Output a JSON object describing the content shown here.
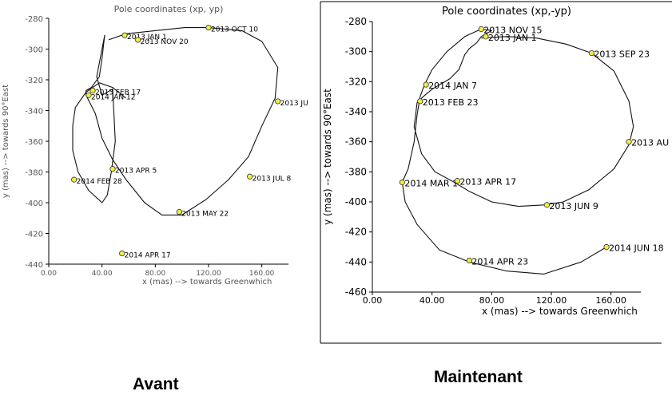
{
  "captions": {
    "left": "Avant",
    "right": "Maintenant"
  },
  "chart_data": [
    {
      "type": "line",
      "title": "Pole coordinates (xp, yp)",
      "xlabel": "x (mas) --> towards Greenwhich",
      "ylabel": "y (mas) --> towards 90°East",
      "xlim": [
        0,
        180
      ],
      "ylim": [
        -440,
        -280
      ],
      "xticks": [
        "0.00",
        "40.00",
        "80.00",
        "120.00",
        "160.00"
      ],
      "yticks": [
        "-280",
        "-300",
        "-320",
        "-340",
        "-360",
        "-380",
        "-400",
        "-420",
        "-440"
      ],
      "grid": false,
      "series": [
        {
          "x": [
            45,
            58,
            80,
            102,
            120,
            145,
            160,
            172,
            170,
            160,
            150,
            135,
            118,
            100,
            85,
            72,
            58,
            48,
            40,
            35,
            28,
            28,
            32,
            38,
            40,
            42,
            36,
            40,
            48,
            50,
            47,
            44,
            40,
            30,
            22,
            18,
            18,
            20,
            28,
            38,
            48,
            58
          ],
          "y": [
            -294,
            -290,
            -288,
            -286,
            -286,
            -288,
            -295,
            -312,
            -332,
            -350,
            -370,
            -385,
            -398,
            -408,
            -408,
            -400,
            -385,
            -372,
            -358,
            -342,
            -330,
            -327,
            -325,
            -318,
            -306,
            -291,
            -318,
            -330,
            -326,
            -360,
            -380,
            -395,
            -400,
            -392,
            -380,
            -366,
            -350,
            -338,
            -328,
            -322,
            -325,
            -332
          ]
        }
      ],
      "markers": [
        {
          "label": "2013 OCT 10",
          "x": 120,
          "y": -286
        },
        {
          "label": "2013 JAN 1",
          "x": 57,
          "y": -291
        },
        {
          "label": "2013 NOV 20",
          "x": 67,
          "y": -294
        },
        {
          "label": "2013 JU",
          "x": 172,
          "y": -334
        },
        {
          "label": "2013 FEB 17",
          "x": 33,
          "y": -327
        },
        {
          "label": "2014 JAN 12",
          "x": 30,
          "y": -330
        },
        {
          "label": "2013 JUL 8",
          "x": 151,
          "y": -383
        },
        {
          "label": "2013 APR 5",
          "x": 48,
          "y": -378
        },
        {
          "label": "2014 FEB 28",
          "x": 19,
          "y": -385
        },
        {
          "label": "2013 MAY 22",
          "x": 98,
          "y": -406
        },
        {
          "label": "2014 APR 17",
          "x": 55,
          "y": -433
        }
      ]
    },
    {
      "type": "line",
      "title": "Pole coordinates (xp,-yp)",
      "xlabel": "x (mas) --> towards Greenwhich",
      "ylabel": "y (mas) --> towards 90°East",
      "xlim": [
        0,
        180
      ],
      "ylim": [
        -460,
        -280
      ],
      "xticks": [
        "0.00",
        "40.00",
        "80.00",
        "120.00",
        "160.00"
      ],
      "yticks": [
        "-280",
        "-300",
        "-320",
        "-340",
        "-360",
        "-380",
        "-400",
        "-420",
        "-440",
        "-460"
      ],
      "grid": false,
      "series": [
        {
          "x": [
            73,
            90,
            110,
            130,
            147,
            162,
            172,
            175,
            172,
            162,
            145,
            128,
            115,
            98,
            80,
            65,
            55,
            42,
            33,
            28,
            30,
            34,
            40,
            52,
            58,
            62,
            65,
            70,
            73,
            80,
            73,
            62,
            50,
            40,
            35,
            32,
            30,
            28,
            24,
            20,
            22,
            30,
            45,
            65,
            90,
            115,
            140,
            157
          ],
          "y": [
            -291,
            -290,
            -291,
            -295,
            -301,
            -313,
            -333,
            -350,
            -362,
            -378,
            -392,
            -400,
            -402,
            -403,
            -400,
            -393,
            -387,
            -380,
            -368,
            -350,
            -334,
            -330,
            -325,
            -318,
            -312,
            -302,
            -298,
            -294,
            -290,
            -286,
            -285,
            -290,
            -300,
            -312,
            -322,
            -330,
            -342,
            -360,
            -378,
            -387,
            -400,
            -415,
            -432,
            -440,
            -446,
            -448,
            -440,
            -430
          ]
        }
      ],
      "markers": [
        {
          "label": "2013 NOV 15",
          "x": 73,
          "y": -285
        },
        {
          "label": "2013 JAN 1",
          "x": 76,
          "y": -290
        },
        {
          "label": "2013 SEP 23",
          "x": 147,
          "y": -301
        },
        {
          "label": "2014 JAN 7",
          "x": 36,
          "y": -322
        },
        {
          "label": "2013 FEB 23",
          "x": 32,
          "y": -333
        },
        {
          "label": "2013 AU",
          "x": 172,
          "y": -360
        },
        {
          "label": "2014 MAR 1",
          "x": 20,
          "y": -387
        },
        {
          "label": "2013 APR 17",
          "x": 57,
          "y": -386
        },
        {
          "label": "2013 JUN 9",
          "x": 117,
          "y": -402
        },
        {
          "label": "2014 APR 23",
          "x": 65,
          "y": -439
        },
        {
          "label": "2014 JUN 18",
          "x": 157,
          "y": -430
        }
      ]
    }
  ]
}
